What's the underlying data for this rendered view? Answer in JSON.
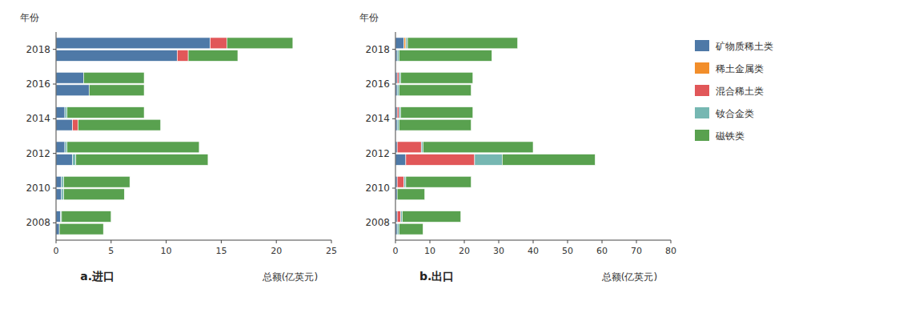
{
  "chart_data": [
    {
      "type": "bar",
      "orientation": "horizontal",
      "stacked": true,
      "grid": false,
      "title": "a.进口",
      "y_label": "年份",
      "x_label": "总额(亿英元)",
      "categories": [
        "2008",
        "2010",
        "2012",
        "2014",
        "2016",
        "2018"
      ],
      "xlim": [
        0,
        25
      ],
      "xticks": [
        0,
        5,
        10,
        15,
        20,
        25
      ],
      "series": [
        {
          "name": "矿物质稀土类",
          "color": "#4e79a7",
          "values": [
            0.4,
            0.5,
            0.8,
            0.8,
            2.5,
            14.0
          ],
          "lower_values": [
            0.3,
            0.5,
            1.5,
            1.5,
            3.0,
            11.0
          ]
        },
        {
          "name": "稀土金属类",
          "color": "#f28e2b",
          "values": [
            0.0,
            0.0,
            0.0,
            0.0,
            0.0,
            0.0
          ],
          "lower_values": [
            0.0,
            0.0,
            0.0,
            0.0,
            0.0,
            0.0
          ]
        },
        {
          "name": "混合稀土类",
          "color": "#e15759",
          "values": [
            0.0,
            0.0,
            0.0,
            0.0,
            0.0,
            1.5
          ],
          "lower_values": [
            0.0,
            0.0,
            0.0,
            0.5,
            0.0,
            1.0
          ]
        },
        {
          "name": "钕合金类",
          "color": "#76b7b2",
          "values": [
            0.1,
            0.2,
            0.2,
            0.2,
            0.0,
            0.0
          ],
          "lower_values": [
            0.0,
            0.2,
            0.3,
            0.0,
            0.0,
            0.0
          ]
        },
        {
          "name": "磁铁类",
          "color": "#59a14f",
          "values": [
            4.5,
            6.0,
            12.0,
            7.0,
            5.5,
            6.0
          ],
          "lower_values": [
            4.0,
            5.5,
            12.0,
            7.5,
            5.0,
            4.5
          ]
        }
      ]
    },
    {
      "type": "bar",
      "orientation": "horizontal",
      "stacked": true,
      "grid": false,
      "legend": "right",
      "title": "b.出口",
      "y_label": "年份",
      "x_label": "总额(亿英元)",
      "categories": [
        "2008",
        "2010",
        "2012",
        "2014",
        "2016",
        "2018"
      ],
      "xlim": [
        0,
        80
      ],
      "xticks": [
        0,
        10,
        20,
        30,
        40,
        50,
        60,
        70,
        80
      ],
      "series": [
        {
          "name": "矿物质稀土类",
          "color": "#4e79a7",
          "values": [
            0.5,
            0.5,
            0.5,
            0.5,
            0.5,
            2.5
          ],
          "lower_values": [
            0.5,
            0.5,
            3.0,
            0.5,
            0.5,
            0.5
          ]
        },
        {
          "name": "稀土金属类",
          "color": "#f28e2b",
          "values": [
            0.0,
            0.0,
            0.0,
            0.0,
            0.0,
            0.5
          ],
          "lower_values": [
            0.0,
            0.0,
            0.0,
            0.0,
            0.0,
            0.0
          ]
        },
        {
          "name": "混合稀土类",
          "color": "#e15759",
          "values": [
            1.0,
            2.0,
            7.0,
            0.5,
            0.5,
            0.0
          ],
          "lower_values": [
            0.0,
            0.0,
            20.0,
            0.0,
            0.0,
            0.0
          ]
        },
        {
          "name": "钕合金类",
          "color": "#76b7b2",
          "values": [
            0.5,
            0.5,
            0.5,
            0.5,
            0.5,
            0.5
          ],
          "lower_values": [
            0.5,
            0.0,
            8.0,
            0.5,
            0.5,
            0.5
          ]
        },
        {
          "name": "磁铁类",
          "color": "#59a14f",
          "values": [
            17.0,
            19.0,
            32.0,
            21.0,
            21.0,
            32.0
          ],
          "lower_values": [
            7.0,
            8.0,
            27.0,
            21.0,
            21.0,
            27.0
          ]
        }
      ]
    }
  ]
}
